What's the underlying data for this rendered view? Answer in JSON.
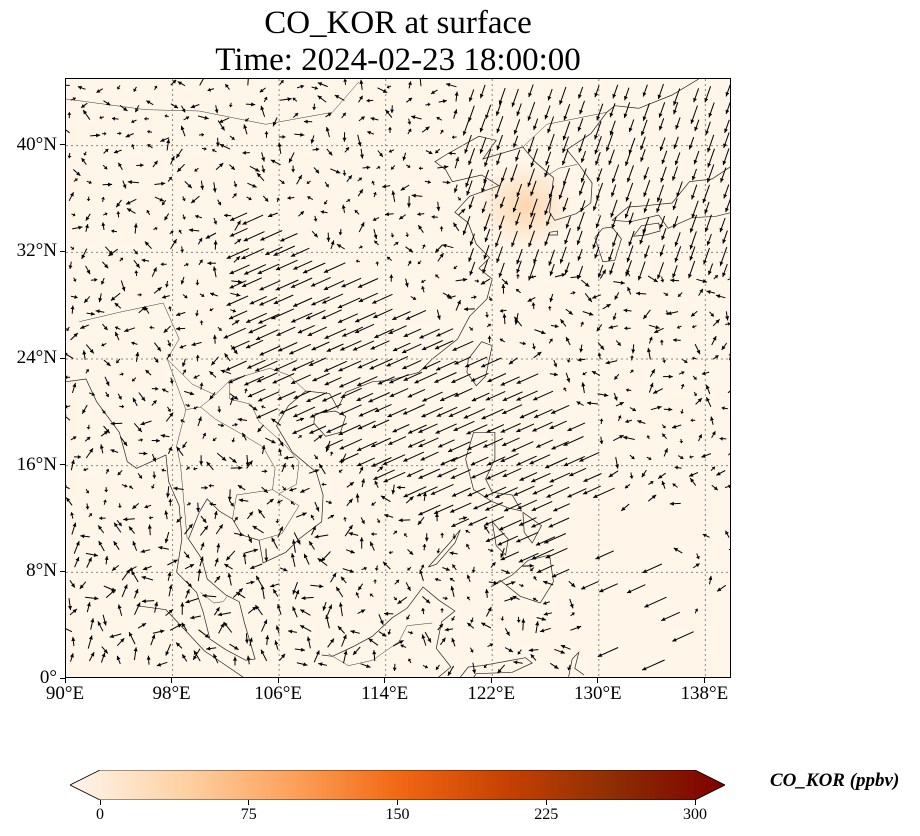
{
  "title": {
    "line1": "CO_KOR at surface",
    "line2": "Time: 2024-02-23 18:00:00"
  },
  "map": {
    "extent": {
      "lon_min": 90,
      "lon_max": 140,
      "lat_min": 0,
      "lat_max": 45
    },
    "lat_ticks": [
      {
        "value": 0,
        "label": "0°"
      },
      {
        "value": 8,
        "label": "8°N"
      },
      {
        "value": 16,
        "label": "16°N"
      },
      {
        "value": 24,
        "label": "24°N"
      },
      {
        "value": 32,
        "label": "32°N"
      },
      {
        "value": 40,
        "label": "40°N"
      }
    ],
    "lon_ticks": [
      {
        "value": 90,
        "label": "90°E"
      },
      {
        "value": 98,
        "label": "98°E"
      },
      {
        "value": 106,
        "label": "106°E"
      },
      {
        "value": 114,
        "label": "114°E"
      },
      {
        "value": 122,
        "label": "122°E"
      },
      {
        "value": 130,
        "label": "130°E"
      },
      {
        "value": 138,
        "label": "138°E"
      }
    ],
    "gridlines": true,
    "background_color": "#fff5e9",
    "plume": {
      "lon": 124.5,
      "lat": 35.5,
      "color": "#fcd3a8"
    }
  },
  "colorbar": {
    "label": "CO_KOR (ppbv)",
    "ticks": [
      {
        "value": 0,
        "label": "0"
      },
      {
        "value": 75,
        "label": "75"
      },
      {
        "value": 150,
        "label": "150"
      },
      {
        "value": 225,
        "label": "225"
      },
      {
        "value": 300,
        "label": "300"
      }
    ],
    "min": 0,
    "max": 300,
    "colors": [
      "#fff5eb",
      "#fdd3a7",
      "#fda35e",
      "#f16913",
      "#c64102",
      "#8c2d04",
      "#7f0000"
    ]
  }
}
